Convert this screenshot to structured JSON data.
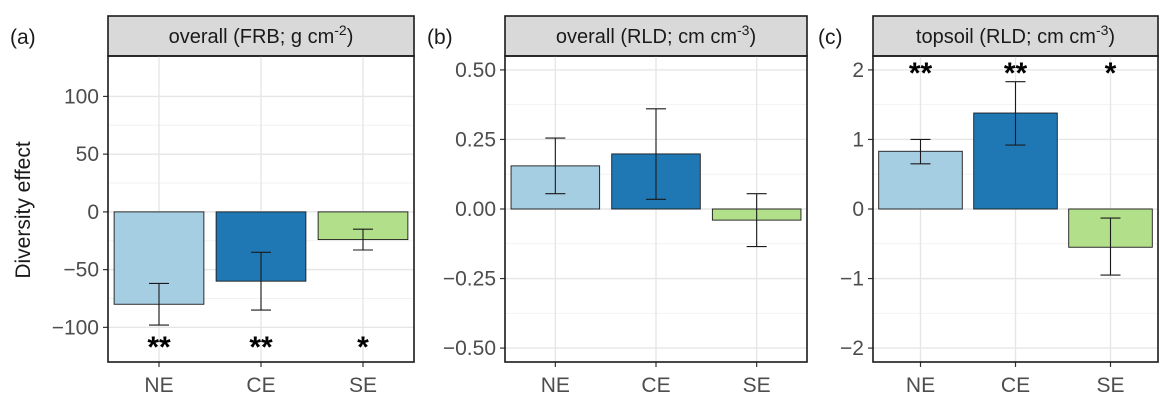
{
  "figure": {
    "ylabel": "Diversity effect",
    "colors": {
      "NE": "#a6cee3",
      "CE": "#1f78b4",
      "SE": "#b2df8a",
      "strip": "#d9d9d9",
      "grid_major": "#e6e6e6",
      "grid_minor": "#f2f2f2"
    }
  },
  "chart_data": [
    {
      "type": "bar",
      "panel_label": "(a)",
      "strip_text": "overall (FRB; g cm",
      "strip_sup": "-2",
      "strip_end": ")",
      "categories": [
        "NE",
        "CE",
        "SE"
      ],
      "values": [
        -80,
        -60,
        -24
      ],
      "error_low": [
        -98,
        -85,
        -33
      ],
      "error_high": [
        -62,
        -35,
        -15
      ],
      "significance": [
        "**",
        "**",
        "*"
      ],
      "significance_position": "bottom",
      "ylim": [
        -130,
        135
      ],
      "yticks": [
        -100,
        -50,
        0,
        50,
        100
      ],
      "ytick_labels": [
        "−100",
        "−50",
        "0",
        "50",
        "100"
      ],
      "grid": true
    },
    {
      "type": "bar",
      "panel_label": "(b)",
      "strip_text": "overall (RLD; cm cm",
      "strip_sup": "-3",
      "strip_end": ")",
      "categories": [
        "NE",
        "CE",
        "SE"
      ],
      "values": [
        0.155,
        0.198,
        -0.04
      ],
      "error_low": [
        0.055,
        0.035,
        -0.135
      ],
      "error_high": [
        0.255,
        0.36,
        0.055
      ],
      "significance": [
        "",
        "",
        ""
      ],
      "significance_position": "none",
      "ylim": [
        -0.55,
        0.55
      ],
      "yticks": [
        -0.5,
        -0.25,
        0,
        0.25,
        0.5
      ],
      "ytick_labels": [
        "−0.50",
        "−0.25",
        "0.00",
        "0.25",
        "0.50"
      ],
      "grid": true
    },
    {
      "type": "bar",
      "panel_label": "(c)",
      "strip_text": "topsoil (RLD; cm cm",
      "strip_sup": "-3",
      "strip_end": ")",
      "categories": [
        "NE",
        "CE",
        "SE"
      ],
      "values": [
        0.83,
        1.38,
        -0.55
      ],
      "error_low": [
        0.65,
        0.92,
        -0.95
      ],
      "error_high": [
        1.0,
        1.83,
        -0.13
      ],
      "significance": [
        "**",
        "**",
        "*"
      ],
      "significance_position": "top",
      "ylim": [
        -2.2,
        2.2
      ],
      "yticks": [
        -2,
        -1,
        0,
        1,
        2
      ],
      "ytick_labels": [
        "−2",
        "−1",
        "0",
        "1",
        "2"
      ],
      "grid": true
    }
  ]
}
